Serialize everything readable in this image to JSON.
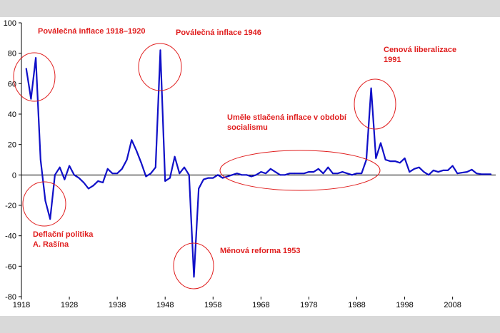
{
  "chart_data": {
    "type": "line",
    "title": "",
    "xlabel": "",
    "ylabel": "",
    "xlim": [
      1918,
      2017
    ],
    "ylim": [
      -80,
      100
    ],
    "grid": false,
    "legend": "none",
    "line_color": "#1010c8",
    "annotation_color": "#e01e1e",
    "x_ticks": [
      "1918",
      "1928",
      "1938",
      "1948",
      "1958",
      "1968",
      "1978",
      "1988",
      "1998",
      "2008"
    ],
    "y_ticks": [
      "100",
      "80",
      "60",
      "40",
      "20",
      "0",
      "-20",
      "-40",
      "-60",
      "-80"
    ],
    "series": [
      {
        "x": [
          1919,
          1920,
          1921,
          1922,
          1923,
          1924,
          1925,
          1926,
          1927,
          1928,
          1929,
          1930,
          1931,
          1932,
          1933,
          1934,
          1935,
          1936,
          1937,
          1938,
          1939,
          1940,
          1941,
          1942,
          1943,
          1944,
          1945,
          1946,
          1947,
          1948,
          1949,
          1950,
          1951,
          1952,
          1953,
          1954,
          1955,
          1956,
          1957,
          1958,
          1959,
          1960,
          1961,
          1962,
          1963,
          1964,
          1965,
          1966,
          1967,
          1968,
          1969,
          1970,
          1971,
          1972,
          1973,
          1974,
          1975,
          1976,
          1977,
          1978,
          1979,
          1980,
          1981,
          1982,
          1983,
          1984,
          1985,
          1986,
          1987,
          1988,
          1989,
          1990,
          1991,
          1992,
          1993,
          1994,
          1995,
          1996,
          1997,
          1998,
          1999,
          2000,
          2001,
          2002,
          2003,
          2004,
          2005,
          2006,
          2007,
          2008,
          2009,
          2010,
          2011,
          2012,
          2013,
          2014,
          2015,
          2016
        ],
        "values": [
          70,
          50,
          77,
          10,
          -17,
          -29,
          0,
          5,
          -3,
          6,
          0,
          -2,
          -5,
          -9,
          -7,
          -4,
          -5,
          4,
          1,
          1,
          4,
          10,
          23,
          16,
          8,
          -1,
          1,
          5,
          82,
          -4,
          -2,
          12,
          1,
          5,
          0,
          -67,
          -9,
          -3,
          -2,
          -2,
          0,
          -2,
          -1,
          0,
          1,
          0,
          0,
          -1,
          0,
          2,
          1,
          4,
          2,
          0,
          0,
          1,
          1,
          1,
          1,
          2,
          2,
          4,
          1,
          5,
          1,
          1,
          2,
          1,
          0,
          1,
          1,
          10,
          57,
          11,
          21,
          10,
          9,
          9,
          8,
          11,
          2,
          4,
          5,
          2,
          0,
          3,
          2,
          3,
          3,
          6,
          1,
          1.5,
          2,
          3.5,
          1,
          0.5,
          0.5,
          0.5
        ]
      }
    ],
    "annotations": [
      {
        "lines": [
          "Poválečná inflace 1918–1920"
        ]
      },
      {
        "lines": [
          "Poválečná inflace 1946"
        ]
      },
      {
        "lines": [
          "Cenová liberalizace",
          "1991"
        ]
      },
      {
        "lines": [
          "Uměle stlačená inflace v období",
          "socialismu"
        ]
      },
      {
        "lines": [
          "Deflační politika",
          "A. Rašína"
        ]
      },
      {
        "lines": [
          "Měnová reforma 1953"
        ]
      }
    ]
  }
}
